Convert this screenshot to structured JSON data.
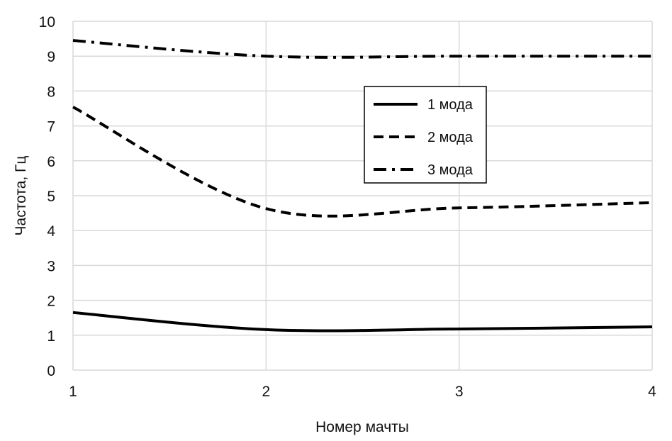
{
  "chart_data": {
    "type": "line",
    "title": "",
    "xlabel": "Номер мачты",
    "ylabel": "Частота, Гц",
    "x": [
      1,
      2,
      3,
      4
    ],
    "xlim": [
      1,
      4
    ],
    "ylim": [
      0,
      10
    ],
    "xticks": [
      1,
      2,
      3,
      4
    ],
    "yticks": [
      0,
      1,
      2,
      3,
      4,
      5,
      6,
      7,
      8,
      9,
      10
    ],
    "grid": true,
    "smoothed": true,
    "legend_position": "top-center-right",
    "series": [
      {
        "name": "1 мода",
        "values": [
          1.65,
          1.16,
          1.18,
          1.24
        ],
        "style": "solid",
        "color": "#000000"
      },
      {
        "name": "2 мода",
        "values": [
          7.54,
          4.63,
          4.65,
          4.8
        ],
        "style": "dash",
        "color": "#000000"
      },
      {
        "name": "3 мода",
        "values": [
          9.45,
          9.0,
          9.0,
          9.0
        ],
        "style": "dash-dot",
        "color": "#000000"
      }
    ]
  }
}
